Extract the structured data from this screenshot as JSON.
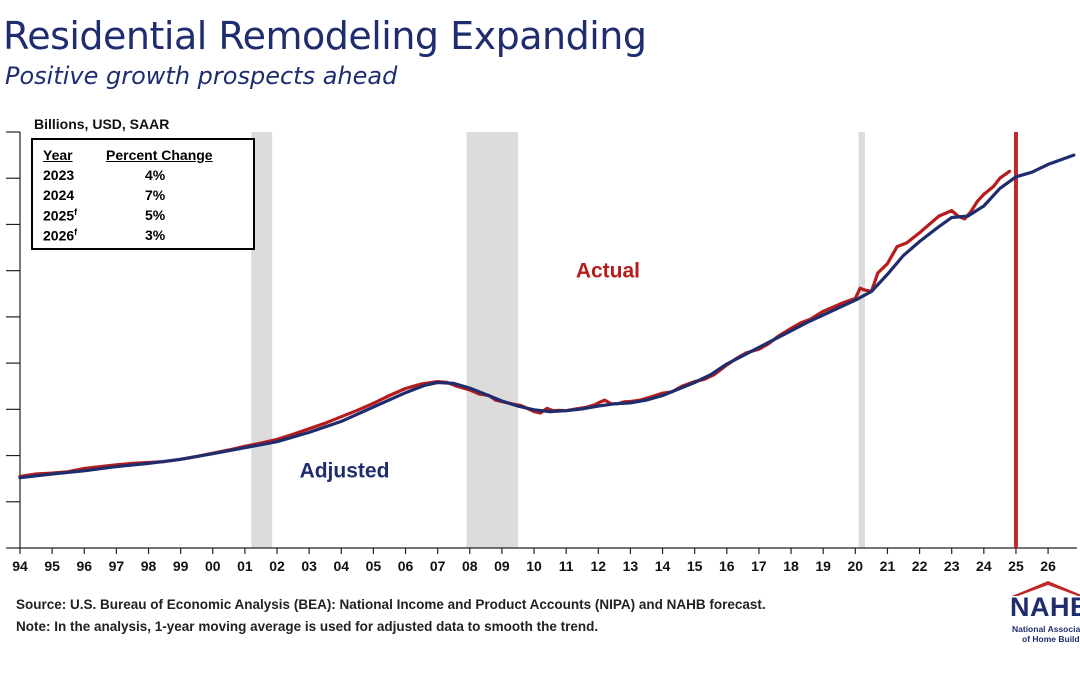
{
  "header": {
    "title": "Residential Remodeling Expanding",
    "subtitle": "Positive growth prospects ahead"
  },
  "units": "Billions, USD, SAAR",
  "table": {
    "headers": [
      "Year",
      "Percent Change"
    ],
    "rows": [
      {
        "year": "2023",
        "sup": "",
        "change": "4%"
      },
      {
        "year": "2024",
        "sup": "",
        "change": "7%"
      },
      {
        "year": "2025",
        "sup": "f",
        "change": "5%"
      },
      {
        "year": "2026",
        "sup": "f",
        "change": "3%"
      }
    ]
  },
  "footer": {
    "source": "Source: U.S. Bureau of Economic Analysis (BEA): National Income and Product Accounts (NIPA) and NAHB forecast.",
    "note": "Note: In the analysis, 1-year moving average is used for adjusted data to smooth the trend."
  },
  "logo": {
    "word": "NAHB",
    "line1": "National Association",
    "line2": "of Home Builders"
  },
  "colors": {
    "actual": "#b71c1c",
    "adjusted": "#1f2d6e",
    "recession": "#dcdcdc",
    "forecast_line": "#c0282a",
    "title": "#1f2d6e"
  },
  "chart_data": {
    "type": "line",
    "xlabel": "",
    "ylabel": "",
    "xlim": [
      1994,
      2026.9
    ],
    "ylim": [
      0,
      9
    ],
    "x_tick_labels": [
      "94",
      "95",
      "96",
      "97",
      "98",
      "99",
      "00",
      "01",
      "02",
      "03",
      "04",
      "05",
      "06",
      "07",
      "08",
      "09",
      "10",
      "11",
      "12",
      "13",
      "14",
      "15",
      "16",
      "17",
      "18",
      "19",
      "20",
      "21",
      "22",
      "23",
      "24",
      "25",
      "26"
    ],
    "recessions": [
      [
        2001.2,
        2001.85
      ],
      [
        2007.9,
        2009.5
      ],
      [
        2020.1,
        2020.3
      ]
    ],
    "forecast_start": 2025.0,
    "annotations": [
      {
        "text": "Actual",
        "x": 2012.3,
        "y": 5.85,
        "color": "#b71c1c"
      },
      {
        "text": "Adjusted",
        "x": 2004.1,
        "y": 1.53,
        "color": "#1f2d6e"
      }
    ],
    "series": [
      {
        "name": "Actual",
        "color": "#b71c1c",
        "points": [
          [
            1994,
            1.55
          ],
          [
            1994.5,
            1.6
          ],
          [
            1995,
            1.62
          ],
          [
            1995.5,
            1.65
          ],
          [
            1996,
            1.72
          ],
          [
            1996.5,
            1.76
          ],
          [
            1997,
            1.8
          ],
          [
            1997.5,
            1.83
          ],
          [
            1998,
            1.85
          ],
          [
            1998.5,
            1.87
          ],
          [
            1999,
            1.92
          ],
          [
            1999.5,
            1.98
          ],
          [
            2000,
            2.05
          ],
          [
            2000.5,
            2.12
          ],
          [
            2001,
            2.2
          ],
          [
            2001.5,
            2.27
          ],
          [
            2002,
            2.35
          ],
          [
            2002.5,
            2.46
          ],
          [
            2003,
            2.58
          ],
          [
            2003.5,
            2.7
          ],
          [
            2004,
            2.84
          ],
          [
            2004.5,
            2.98
          ],
          [
            2005,
            3.13
          ],
          [
            2005.5,
            3.3
          ],
          [
            2006,
            3.45
          ],
          [
            2006.5,
            3.55
          ],
          [
            2007,
            3.6
          ],
          [
            2007.3,
            3.58
          ],
          [
            2007.6,
            3.5
          ],
          [
            2008,
            3.42
          ],
          [
            2008.3,
            3.33
          ],
          [
            2008.6,
            3.3
          ],
          [
            2008.8,
            3.2
          ],
          [
            2009,
            3.17
          ],
          [
            2009.3,
            3.12
          ],
          [
            2009.6,
            3.08
          ],
          [
            2010,
            2.95
          ],
          [
            2010.2,
            2.92
          ],
          [
            2010.4,
            3.02
          ],
          [
            2010.6,
            2.97
          ],
          [
            2010.8,
            2.98
          ],
          [
            2011,
            2.97
          ],
          [
            2011.3,
            3.01
          ],
          [
            2011.6,
            3.04
          ],
          [
            2011.9,
            3.1
          ],
          [
            2012,
            3.14
          ],
          [
            2012.2,
            3.2
          ],
          [
            2012.4,
            3.12
          ],
          [
            2012.6,
            3.12
          ],
          [
            2012.8,
            3.16
          ],
          [
            2013,
            3.17
          ],
          [
            2013.3,
            3.2
          ],
          [
            2013.6,
            3.26
          ],
          [
            2014,
            3.35
          ],
          [
            2014.3,
            3.38
          ],
          [
            2014.6,
            3.5
          ],
          [
            2015,
            3.6
          ],
          [
            2015.3,
            3.65
          ],
          [
            2015.6,
            3.75
          ],
          [
            2016,
            3.96
          ],
          [
            2016.3,
            4.1
          ],
          [
            2016.6,
            4.22
          ],
          [
            2017,
            4.3
          ],
          [
            2017.3,
            4.42
          ],
          [
            2017.6,
            4.58
          ],
          [
            2018,
            4.75
          ],
          [
            2018.3,
            4.87
          ],
          [
            2018.6,
            4.95
          ],
          [
            2019,
            5.12
          ],
          [
            2019.3,
            5.21
          ],
          [
            2019.6,
            5.3
          ],
          [
            2020,
            5.4
          ],
          [
            2020.15,
            5.62
          ],
          [
            2020.3,
            5.58
          ],
          [
            2020.5,
            5.55
          ],
          [
            2020.7,
            5.95
          ],
          [
            2021,
            6.15
          ],
          [
            2021.3,
            6.52
          ],
          [
            2021.6,
            6.6
          ],
          [
            2022,
            6.82
          ],
          [
            2022.3,
            7.0
          ],
          [
            2022.6,
            7.18
          ],
          [
            2023,
            7.3
          ],
          [
            2023.2,
            7.18
          ],
          [
            2023.4,
            7.12
          ],
          [
            2023.6,
            7.28
          ],
          [
            2023.8,
            7.5
          ],
          [
            2024,
            7.65
          ],
          [
            2024.3,
            7.82
          ],
          [
            2024.5,
            8.0
          ],
          [
            2024.8,
            8.15
          ]
        ]
      },
      {
        "name": "Adjusted",
        "color": "#1f2d6e",
        "points": [
          [
            1994,
            1.52
          ],
          [
            1995,
            1.6
          ],
          [
            1996,
            1.67
          ],
          [
            1997,
            1.76
          ],
          [
            1998,
            1.83
          ],
          [
            1999,
            1.92
          ],
          [
            2000,
            2.04
          ],
          [
            2001,
            2.17
          ],
          [
            2002,
            2.3
          ],
          [
            2003,
            2.5
          ],
          [
            2004,
            2.74
          ],
          [
            2005,
            3.05
          ],
          [
            2006,
            3.36
          ],
          [
            2006.6,
            3.52
          ],
          [
            2007,
            3.58
          ],
          [
            2007.5,
            3.56
          ],
          [
            2008,
            3.46
          ],
          [
            2008.5,
            3.32
          ],
          [
            2009,
            3.18
          ],
          [
            2009.5,
            3.07
          ],
          [
            2010,
            2.99
          ],
          [
            2010.5,
            2.95
          ],
          [
            2011,
            2.97
          ],
          [
            2011.5,
            3.01
          ],
          [
            2012,
            3.07
          ],
          [
            2012.5,
            3.12
          ],
          [
            2013,
            3.14
          ],
          [
            2013.5,
            3.2
          ],
          [
            2014,
            3.3
          ],
          [
            2014.5,
            3.44
          ],
          [
            2015,
            3.58
          ],
          [
            2015.5,
            3.75
          ],
          [
            2016,
            3.98
          ],
          [
            2016.5,
            4.16
          ],
          [
            2017,
            4.34
          ],
          [
            2017.5,
            4.52
          ],
          [
            2018,
            4.7
          ],
          [
            2018.5,
            4.88
          ],
          [
            2019,
            5.04
          ],
          [
            2019.5,
            5.2
          ],
          [
            2020,
            5.36
          ],
          [
            2020.5,
            5.55
          ],
          [
            2021,
            5.92
          ],
          [
            2021.5,
            6.33
          ],
          [
            2022,
            6.63
          ],
          [
            2022.5,
            6.9
          ],
          [
            2023,
            7.15
          ],
          [
            2023.5,
            7.18
          ],
          [
            2024,
            7.4
          ],
          [
            2024.5,
            7.78
          ],
          [
            2025,
            8.03
          ],
          [
            2025.5,
            8.13
          ],
          [
            2026,
            8.3
          ],
          [
            2026.8,
            8.5
          ]
        ]
      }
    ]
  }
}
